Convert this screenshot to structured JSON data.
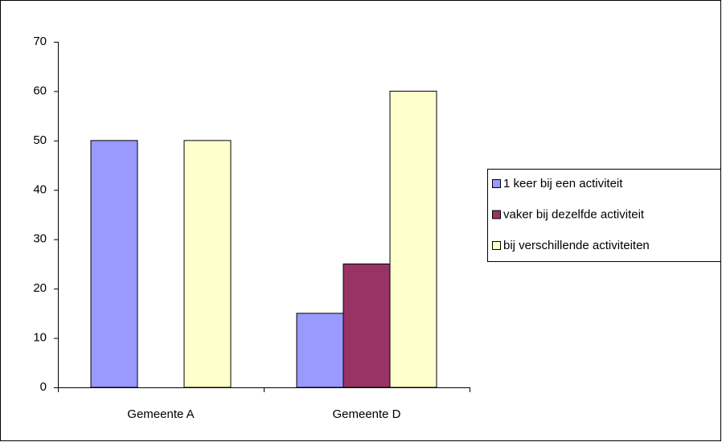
{
  "chart_data": {
    "type": "bar",
    "categories": [
      "Gemeente A",
      "Gemeente D"
    ],
    "series": [
      {
        "name": "1 keer bij een activiteit",
        "color": "#9999ff",
        "values": [
          50,
          15
        ]
      },
      {
        "name": "vaker bij dezelfde activiteit",
        "color": "#993366",
        "values": [
          0,
          25
        ]
      },
      {
        "name": "bij verschillende activiteiten",
        "color": "#ffffcc",
        "values": [
          50,
          60
        ]
      }
    ],
    "ylim": [
      0,
      70
    ],
    "yticks": [
      0,
      10,
      20,
      30,
      40,
      50,
      60,
      70
    ],
    "grid": false,
    "legend": "right"
  }
}
